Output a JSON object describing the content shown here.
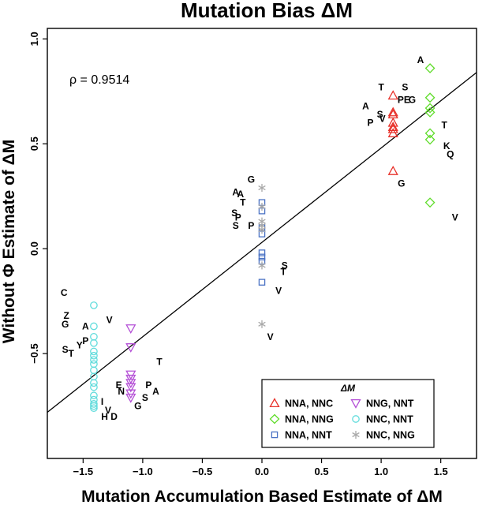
{
  "chart_data": {
    "type": "scatter",
    "title": "Mutation Bias ΔM",
    "xlabel": "Mutation Accumulation Based Estimate of ΔM",
    "ylabel": "Without Φ Estimate of ΔM",
    "xlim": [
      -1.8,
      1.8
    ],
    "ylim": [
      -1.0,
      1.05
    ],
    "x_ticks": [
      -1.5,
      -1.0,
      -0.5,
      0.0,
      0.5,
      1.0,
      1.5
    ],
    "x_tick_labels": [
      "−1.5",
      "−1.0",
      "−0.5",
      "0.0",
      "0.5",
      "1.0",
      "1.5"
    ],
    "y_ticks": [
      -0.5,
      0.0,
      0.5,
      1.0
    ],
    "y_tick_labels": [
      "−0.5",
      "0.0",
      "0.5",
      "1.0"
    ],
    "annotation": "ρ = 0.9514",
    "fit_line": {
      "intercept": 0.03,
      "slope": 0.45
    },
    "legend": {
      "title": "ΔM",
      "entries": [
        {
          "label": "NNA, NNC",
          "marker": "triangle-up",
          "color": "#e8322b"
        },
        {
          "label": "NNG, NNT",
          "marker": "triangle-down",
          "color": "#b44fd6"
        },
        {
          "label": "NNA, NNG",
          "marker": "diamond",
          "color": "#5fdc2a"
        },
        {
          "label": "NNC, NNT",
          "marker": "circle",
          "color": "#62dcdc"
        },
        {
          "label": "NNA, NNT",
          "marker": "square",
          "color": "#4a72c4"
        },
        {
          "label": "NNC, NNG",
          "marker": "asterisk",
          "color": "#a8a8a8"
        }
      ]
    },
    "series": [
      {
        "name": "NNA, NNC",
        "marker": "triangle-up",
        "color": "#e8322b",
        "x": [
          1.1,
          1.1,
          1.1,
          1.1,
          1.1,
          1.1,
          1.1,
          1.1
        ],
        "y": [
          0.73,
          0.65,
          0.64,
          0.6,
          0.58,
          0.57,
          0.55,
          0.37
        ]
      },
      {
        "name": "NNA, NNG",
        "marker": "diamond",
        "color": "#5fdc2a",
        "x": [
          1.41,
          1.41,
          1.41,
          1.41,
          1.41,
          1.41,
          1.41
        ],
        "y": [
          0.86,
          0.72,
          0.67,
          0.65,
          0.55,
          0.52,
          0.22
        ]
      },
      {
        "name": "NNA, NNT",
        "marker": "square",
        "color": "#4a72c4",
        "x": [
          0.0,
          0.0,
          0.0,
          0.0,
          0.0,
          0.0,
          0.0,
          0.0
        ],
        "y": [
          0.22,
          0.18,
          0.1,
          0.07,
          -0.02,
          -0.04,
          -0.06,
          -0.16
        ]
      },
      {
        "name": "NNC, NNG",
        "marker": "asterisk",
        "color": "#a8a8a8",
        "x": [
          0.0,
          0.0,
          0.0,
          0.0,
          0.0,
          0.0,
          0.0
        ],
        "y": [
          0.29,
          0.2,
          0.13,
          0.11,
          0.09,
          -0.08,
          -0.36
        ]
      },
      {
        "name": "NNG, NNT",
        "marker": "triangle-down",
        "color": "#b44fd6",
        "x": [
          -1.1,
          -1.1,
          -1.1,
          -1.1,
          -1.1,
          -1.1,
          -1.1,
          -1.1
        ],
        "y": [
          -0.38,
          -0.47,
          -0.6,
          -0.62,
          -0.64,
          -0.66,
          -0.69,
          -0.71
        ]
      },
      {
        "name": "NNC, NNT",
        "marker": "circle",
        "color": "#62dcdc",
        "x": [
          -1.41,
          -1.41,
          -1.41,
          -1.41,
          -1.41,
          -1.41,
          -1.41,
          -1.41,
          -1.41,
          -1.41,
          -1.41,
          -1.41,
          -1.41,
          -1.41,
          -1.41,
          -1.41,
          -1.41
        ],
        "y": [
          -0.27,
          -0.37,
          -0.42,
          -0.45,
          -0.49,
          -0.51,
          -0.53,
          -0.55,
          -0.58,
          -0.61,
          -0.64,
          -0.66,
          -0.7,
          -0.72,
          -0.74,
          -0.75,
          -0.76
        ]
      }
    ],
    "labels": [
      {
        "text": "A",
        "x": 1.33,
        "y": 0.9
      },
      {
        "text": "T",
        "x": 1.0,
        "y": 0.77
      },
      {
        "text": "S",
        "x": 1.2,
        "y": 0.77
      },
      {
        "text": "PE",
        "x": 1.19,
        "y": 0.71
      },
      {
        "text": "G",
        "x": 1.26,
        "y": 0.71
      },
      {
        "text": "A",
        "x": 0.87,
        "y": 0.68
      },
      {
        "text": "S",
        "x": 0.99,
        "y": 0.64
      },
      {
        "text": "V",
        "x": 1.01,
        "y": 0.62
      },
      {
        "text": "P",
        "x": 0.91,
        "y": 0.6
      },
      {
        "text": "T",
        "x": 1.53,
        "y": 0.59
      },
      {
        "text": "K",
        "x": 1.55,
        "y": 0.49
      },
      {
        "text": "Q",
        "x": 1.58,
        "y": 0.45
      },
      {
        "text": "G",
        "x": 1.17,
        "y": 0.31
      },
      {
        "text": "V",
        "x": 1.62,
        "y": 0.15
      },
      {
        "text": "G",
        "x": -0.09,
        "y": 0.33
      },
      {
        "text": "A",
        "x": -0.22,
        "y": 0.27
      },
      {
        "text": "A",
        "x": -0.18,
        "y": 0.26
      },
      {
        "text": "T",
        "x": -0.16,
        "y": 0.22
      },
      {
        "text": "S",
        "x": -0.23,
        "y": 0.17
      },
      {
        "text": "P",
        "x": -0.2,
        "y": 0.15
      },
      {
        "text": "S",
        "x": -0.22,
        "y": 0.11
      },
      {
        "text": "P",
        "x": -0.09,
        "y": 0.11
      },
      {
        "text": "S",
        "x": 0.19,
        "y": -0.08
      },
      {
        "text": "T",
        "x": 0.18,
        "y": -0.11
      },
      {
        "text": "V",
        "x": 0.14,
        "y": -0.2
      },
      {
        "text": "V",
        "x": 0.07,
        "y": -0.42
      },
      {
        "text": "C",
        "x": -1.66,
        "y": -0.21
      },
      {
        "text": "Z",
        "x": -1.64,
        "y": -0.32
      },
      {
        "text": "G",
        "x": -1.65,
        "y": -0.36
      },
      {
        "text": "A",
        "x": -1.48,
        "y": -0.37
      },
      {
        "text": "V",
        "x": -1.28,
        "y": -0.34
      },
      {
        "text": "P",
        "x": -1.48,
        "y": -0.44
      },
      {
        "text": "Y",
        "x": -1.53,
        "y": -0.46
      },
      {
        "text": "S",
        "x": -1.65,
        "y": -0.48
      },
      {
        "text": "T",
        "x": -1.6,
        "y": -0.5
      },
      {
        "text": "T",
        "x": -0.86,
        "y": -0.54
      },
      {
        "text": "E",
        "x": -1.2,
        "y": -0.65
      },
      {
        "text": "N",
        "x": -1.18,
        "y": -0.68
      },
      {
        "text": "P",
        "x": -0.95,
        "y": -0.65
      },
      {
        "text": "A",
        "x": -0.89,
        "y": -0.68
      },
      {
        "text": "S",
        "x": -0.98,
        "y": -0.71
      },
      {
        "text": "G",
        "x": -1.04,
        "y": -0.75
      },
      {
        "text": "I",
        "x": -1.34,
        "y": -0.73
      },
      {
        "text": "V",
        "x": -1.29,
        "y": -0.77
      },
      {
        "text": "H",
        "x": -1.32,
        "y": -0.8
      },
      {
        "text": "D",
        "x": -1.24,
        "y": -0.8
      }
    ]
  }
}
